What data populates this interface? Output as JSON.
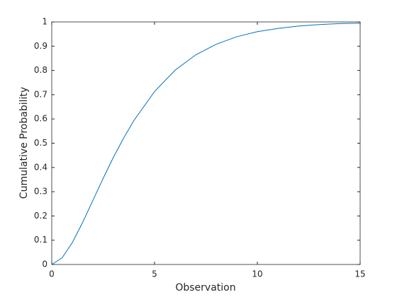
{
  "chart_data": {
    "type": "line",
    "xlabel": "Observation",
    "ylabel": "Cumulative Probability",
    "x": [
      0,
      0.5,
      1,
      1.5,
      2,
      2.5,
      3,
      3.5,
      4,
      5,
      6,
      7,
      8,
      9,
      10,
      11,
      12,
      13,
      14,
      15
    ],
    "series": [
      {
        "color": "#0072bd",
        "values": [
          0,
          0.027,
          0.09,
          0.173,
          0.264,
          0.355,
          0.442,
          0.522,
          0.594,
          0.713,
          0.801,
          0.864,
          0.908,
          0.939,
          0.96,
          0.973,
          0.983,
          0.989,
          0.993,
          0.995
        ]
      }
    ],
    "xlim": [
      0,
      15
    ],
    "ylim": [
      0,
      1
    ],
    "xticks": [
      0,
      5,
      10,
      15
    ],
    "yticks": [
      0,
      0.1,
      0.2,
      0.3,
      0.4,
      0.5,
      0.6,
      0.7,
      0.8,
      0.9,
      1
    ],
    "grid": false
  }
}
